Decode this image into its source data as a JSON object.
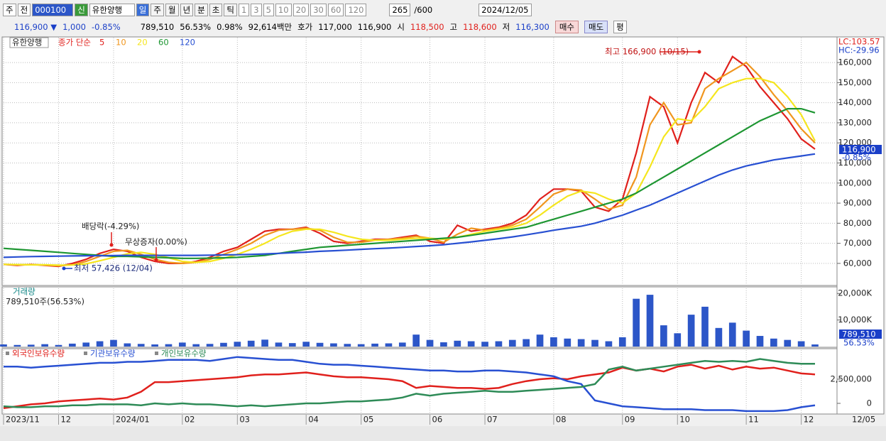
{
  "toolbar": {
    "items": [
      "주",
      "전",
      "000100",
      "신",
      "유한양행",
      "일",
      "주",
      "월",
      "년",
      "분",
      "초",
      "틱",
      "1",
      "3",
      "5",
      "10",
      "20",
      "30",
      "60",
      "120",
      "265",
      "/600",
      "2024/12/05"
    ]
  },
  "info": {
    "items": [
      "116,900 ▼",
      "1,000",
      "-0.85%",
      "789,510",
      "56.53%",
      "0.98%",
      "92,614백만",
      "호가",
      "117,000",
      "116,900",
      "시",
      "118,500",
      "고",
      "118,600",
      "저",
      "116,300",
      "매수",
      "매도",
      "평"
    ]
  },
  "chart_data": [
    {
      "type": "line",
      "stock_name": "유한양행",
      "legend_prefix": "종가 단순",
      "categories": [
        "2023/11",
        null,
        null,
        null,
        "12",
        null,
        null,
        null,
        "2024/01",
        null,
        null,
        null,
        null,
        "02",
        null,
        null,
        null,
        "03",
        null,
        null,
        null,
        null,
        "04",
        null,
        null,
        null,
        "05",
        null,
        null,
        null,
        null,
        "06",
        null,
        null,
        null,
        "07",
        null,
        null,
        null,
        null,
        "08",
        null,
        null,
        null,
        null,
        "09",
        null,
        null,
        null,
        "10",
        null,
        null,
        null,
        null,
        "11",
        null,
        null,
        null,
        "12",
        null
      ],
      "end_date_label": "12/05",
      "ylim": [
        49000,
        171700
      ],
      "yticks": [
        {
          "value": 60000,
          "label": "60,000"
        },
        {
          "value": 70000,
          "label": "70,000"
        },
        {
          "value": 80000,
          "label": "80,000"
        },
        {
          "value": 90000,
          "label": "90,000"
        },
        {
          "value": 100000,
          "label": "100,000"
        },
        {
          "value": 110000,
          "label": "110,000"
        },
        {
          "value": 120000,
          "label": "120,000"
        },
        {
          "value": 130000,
          "label": "130,000"
        },
        {
          "value": 140000,
          "label": "140,000"
        },
        {
          "value": 150000,
          "label": "150,000"
        },
        {
          "value": 160000,
          "label": "160,000"
        }
      ],
      "grid": true,
      "series": [
        {
          "name": "5",
          "color": "#e0201c",
          "values": [
            59500,
            59000,
            59500,
            59000,
            58500,
            60000,
            62000,
            65000,
            67000,
            66000,
            63000,
            61000,
            60000,
            60000,
            61000,
            63000,
            66000,
            68000,
            72000,
            76000,
            77000,
            77000,
            78000,
            75000,
            71000,
            70000,
            71000,
            72000,
            72000,
            73000,
            74000,
            71000,
            70000,
            79000,
            76000,
            77000,
            78000,
            80000,
            84000,
            92000,
            97000,
            97000,
            96000,
            88000,
            86000,
            92000,
            115000,
            143000,
            138000,
            120000,
            140000,
            155000,
            150000,
            163000,
            158000,
            148000,
            140000,
            132000,
            122000,
            116900
          ]
        },
        {
          "name": "10",
          "color": "#f0961e",
          "values": [
            59500,
            59300,
            59300,
            59200,
            58800,
            59300,
            61000,
            63500,
            66000,
            66500,
            64500,
            62000,
            60500,
            60000,
            60500,
            62000,
            64500,
            67000,
            70000,
            74000,
            76500,
            77000,
            77500,
            76500,
            73000,
            70500,
            70500,
            71500,
            72000,
            72500,
            73500,
            72500,
            70500,
            74500,
            77500,
            76500,
            77500,
            79000,
            82000,
            88000,
            94500,
            97000,
            96500,
            92000,
            87000,
            89000,
            103000,
            129000,
            140000,
            129000,
            130000,
            147000,
            152000,
            156000,
            160000,
            153000,
            144000,
            136000,
            127000,
            120000
          ]
        },
        {
          "name": "20",
          "color": "#f5e61e",
          "values": [
            59500,
            59400,
            59300,
            59300,
            59100,
            59200,
            59800,
            61300,
            63000,
            64800,
            65500,
            64500,
            62800,
            61000,
            60500,
            61000,
            62500,
            64500,
            67000,
            70000,
            73500,
            76000,
            77000,
            77000,
            75500,
            73500,
            72000,
            71500,
            71500,
            72000,
            72500,
            72500,
            72000,
            73000,
            74500,
            76000,
            77000,
            78000,
            80000,
            84000,
            89000,
            93500,
            96000,
            95000,
            92000,
            90000,
            95000,
            108000,
            123000,
            132000,
            131000,
            138000,
            147000,
            150000,
            152000,
            152000,
            150000,
            143000,
            134000,
            121000
          ]
        },
        {
          "name": "60",
          "color": "#1e9632",
          "values": [
            67500,
            67000,
            66500,
            66000,
            65500,
            65000,
            64500,
            64000,
            63500,
            63500,
            63300,
            63000,
            62800,
            62500,
            62500,
            62600,
            62800,
            63000,
            63500,
            64000,
            65000,
            66000,
            67000,
            68000,
            68500,
            69000,
            69500,
            70000,
            70500,
            71000,
            71500,
            72000,
            72500,
            73000,
            74000,
            75000,
            76000,
            77000,
            78000,
            80000,
            82000,
            84000,
            86000,
            88000,
            90000,
            92000,
            95000,
            99000,
            103000,
            107000,
            111000,
            115000,
            119000,
            123000,
            127000,
            131000,
            134000,
            137000,
            137000,
            135000
          ]
        },
        {
          "name": "120",
          "color": "#2850d2",
          "values": [
            63000,
            63200,
            63400,
            63500,
            63600,
            63700,
            63800,
            63800,
            63900,
            64000,
            64000,
            64000,
            64000,
            64000,
            64000,
            64100,
            64200,
            64300,
            64500,
            64700,
            65000,
            65300,
            65600,
            66000,
            66300,
            66600,
            67000,
            67300,
            67600,
            68000,
            68400,
            68800,
            69300,
            70000,
            70700,
            71500,
            72300,
            73200,
            74200,
            75300,
            76500,
            77500,
            78500,
            80000,
            82000,
            84000,
            86500,
            89000,
            92000,
            95000,
            98000,
            101000,
            104000,
            106500,
            108500,
            110000,
            111500,
            112500,
            113500,
            114500
          ]
        }
      ],
      "annotations": [
        "최고 166,900 (10/15)",
        "최저 57,426 (12/04)",
        "배당락(-4.29%)",
        "무상증자(0.00%)"
      ],
      "last_label": "116,900",
      "change_label": "-0.85%",
      "lc_label": "LC:103.57",
      "hc_label": "HC:-29.96"
    },
    {
      "type": "bar",
      "title": "거래량",
      "subtitle": "789,510주(56.53%)",
      "color": "#2c56c8",
      "ylim": [
        0,
        22200
      ],
      "yticks": [
        {
          "value": 10000,
          "label": "10,000K"
        },
        {
          "value": 20000,
          "label": "20,000K"
        }
      ],
      "values": [
        800,
        600,
        700,
        900,
        600,
        1100,
        1500,
        2000,
        2500,
        1200,
        1000,
        800,
        900,
        1500,
        900,
        1000,
        1400,
        1800,
        2200,
        2600,
        1500,
        1300,
        1800,
        1400,
        1200,
        1000,
        900,
        1100,
        1200,
        1500,
        4500,
        2500,
        1600,
        2200,
        2000,
        1800,
        2000,
        2500,
        2800,
        4500,
        3500,
        3000,
        2800,
        2500,
        2000,
        3500,
        18000,
        19500,
        8000,
        5000,
        12000,
        15000,
        7000,
        9000,
        6000,
        4000,
        3000,
        2500,
        2000,
        789.51
      ],
      "last_label": "789,510",
      "ratio_label": "56.53%"
    },
    {
      "type": "line",
      "ylim": [
        -1030000,
        5590000
      ],
      "yticks": [
        0,
        {
          "value": 2500000,
          "label": "2,500,000"
        }
      ],
      "series": [
        {
          "name": "외국인보유수량",
          "color": "#e0201c",
          "values": [
            -500000,
            -300000,
            -100000,
            0,
            200000,
            300000,
            400000,
            500000,
            400000,
            600000,
            1200000,
            2200000,
            2200000,
            2300000,
            2400000,
            2500000,
            2600000,
            2700000,
            2900000,
            3000000,
            3000000,
            3100000,
            3200000,
            3000000,
            2800000,
            2700000,
            2700000,
            2600000,
            2500000,
            2300000,
            1600000,
            1800000,
            1700000,
            1600000,
            1600000,
            1500000,
            1600000,
            2000000,
            2300000,
            2500000,
            2600000,
            2500000,
            2800000,
            3000000,
            3200000,
            3700000,
            3400000,
            3600000,
            3300000,
            3800000,
            4000000,
            3600000,
            3900000,
            3500000,
            3800000,
            3600000,
            3700000,
            3400000,
            3100000,
            3000000
          ]
        },
        {
          "name": "기관보유수량",
          "color": "#2850d2",
          "values": [
            3800000,
            3800000,
            3700000,
            3800000,
            3900000,
            4000000,
            4100000,
            4200000,
            4200000,
            4300000,
            4300000,
            4400000,
            4500000,
            4500000,
            4500000,
            4400000,
            4600000,
            4800000,
            4700000,
            4600000,
            4500000,
            4500000,
            4300000,
            4100000,
            4000000,
            4000000,
            3900000,
            3800000,
            3700000,
            3600000,
            3500000,
            3400000,
            3400000,
            3300000,
            3300000,
            3400000,
            3400000,
            3300000,
            3200000,
            3000000,
            2800000,
            2300000,
            2000000,
            300000,
            0,
            -300000,
            -400000,
            -500000,
            -600000,
            -600000,
            -600000,
            -700000,
            -700000,
            -700000,
            -800000,
            -800000,
            -800000,
            -700000,
            -400000,
            -200000
          ]
        },
        {
          "name": "개인보유수량",
          "color": "#2e8b57",
          "values": [
            -300000,
            -400000,
            -400000,
            -300000,
            -300000,
            -200000,
            -200000,
            -100000,
            -100000,
            -100000,
            -200000,
            0,
            -100000,
            0,
            -100000,
            -100000,
            -200000,
            -300000,
            -200000,
            -300000,
            -200000,
            -100000,
            0,
            0,
            100000,
            200000,
            200000,
            300000,
            400000,
            600000,
            1000000,
            800000,
            1000000,
            1100000,
            1200000,
            1300000,
            1200000,
            1200000,
            1300000,
            1400000,
            1500000,
            1600000,
            1700000,
            2000000,
            3500000,
            3800000,
            3400000,
            3600000,
            3800000,
            4000000,
            4200000,
            4400000,
            4300000,
            4400000,
            4300000,
            4600000,
            4400000,
            4200000,
            4100000,
            4100000
          ]
        }
      ]
    }
  ]
}
